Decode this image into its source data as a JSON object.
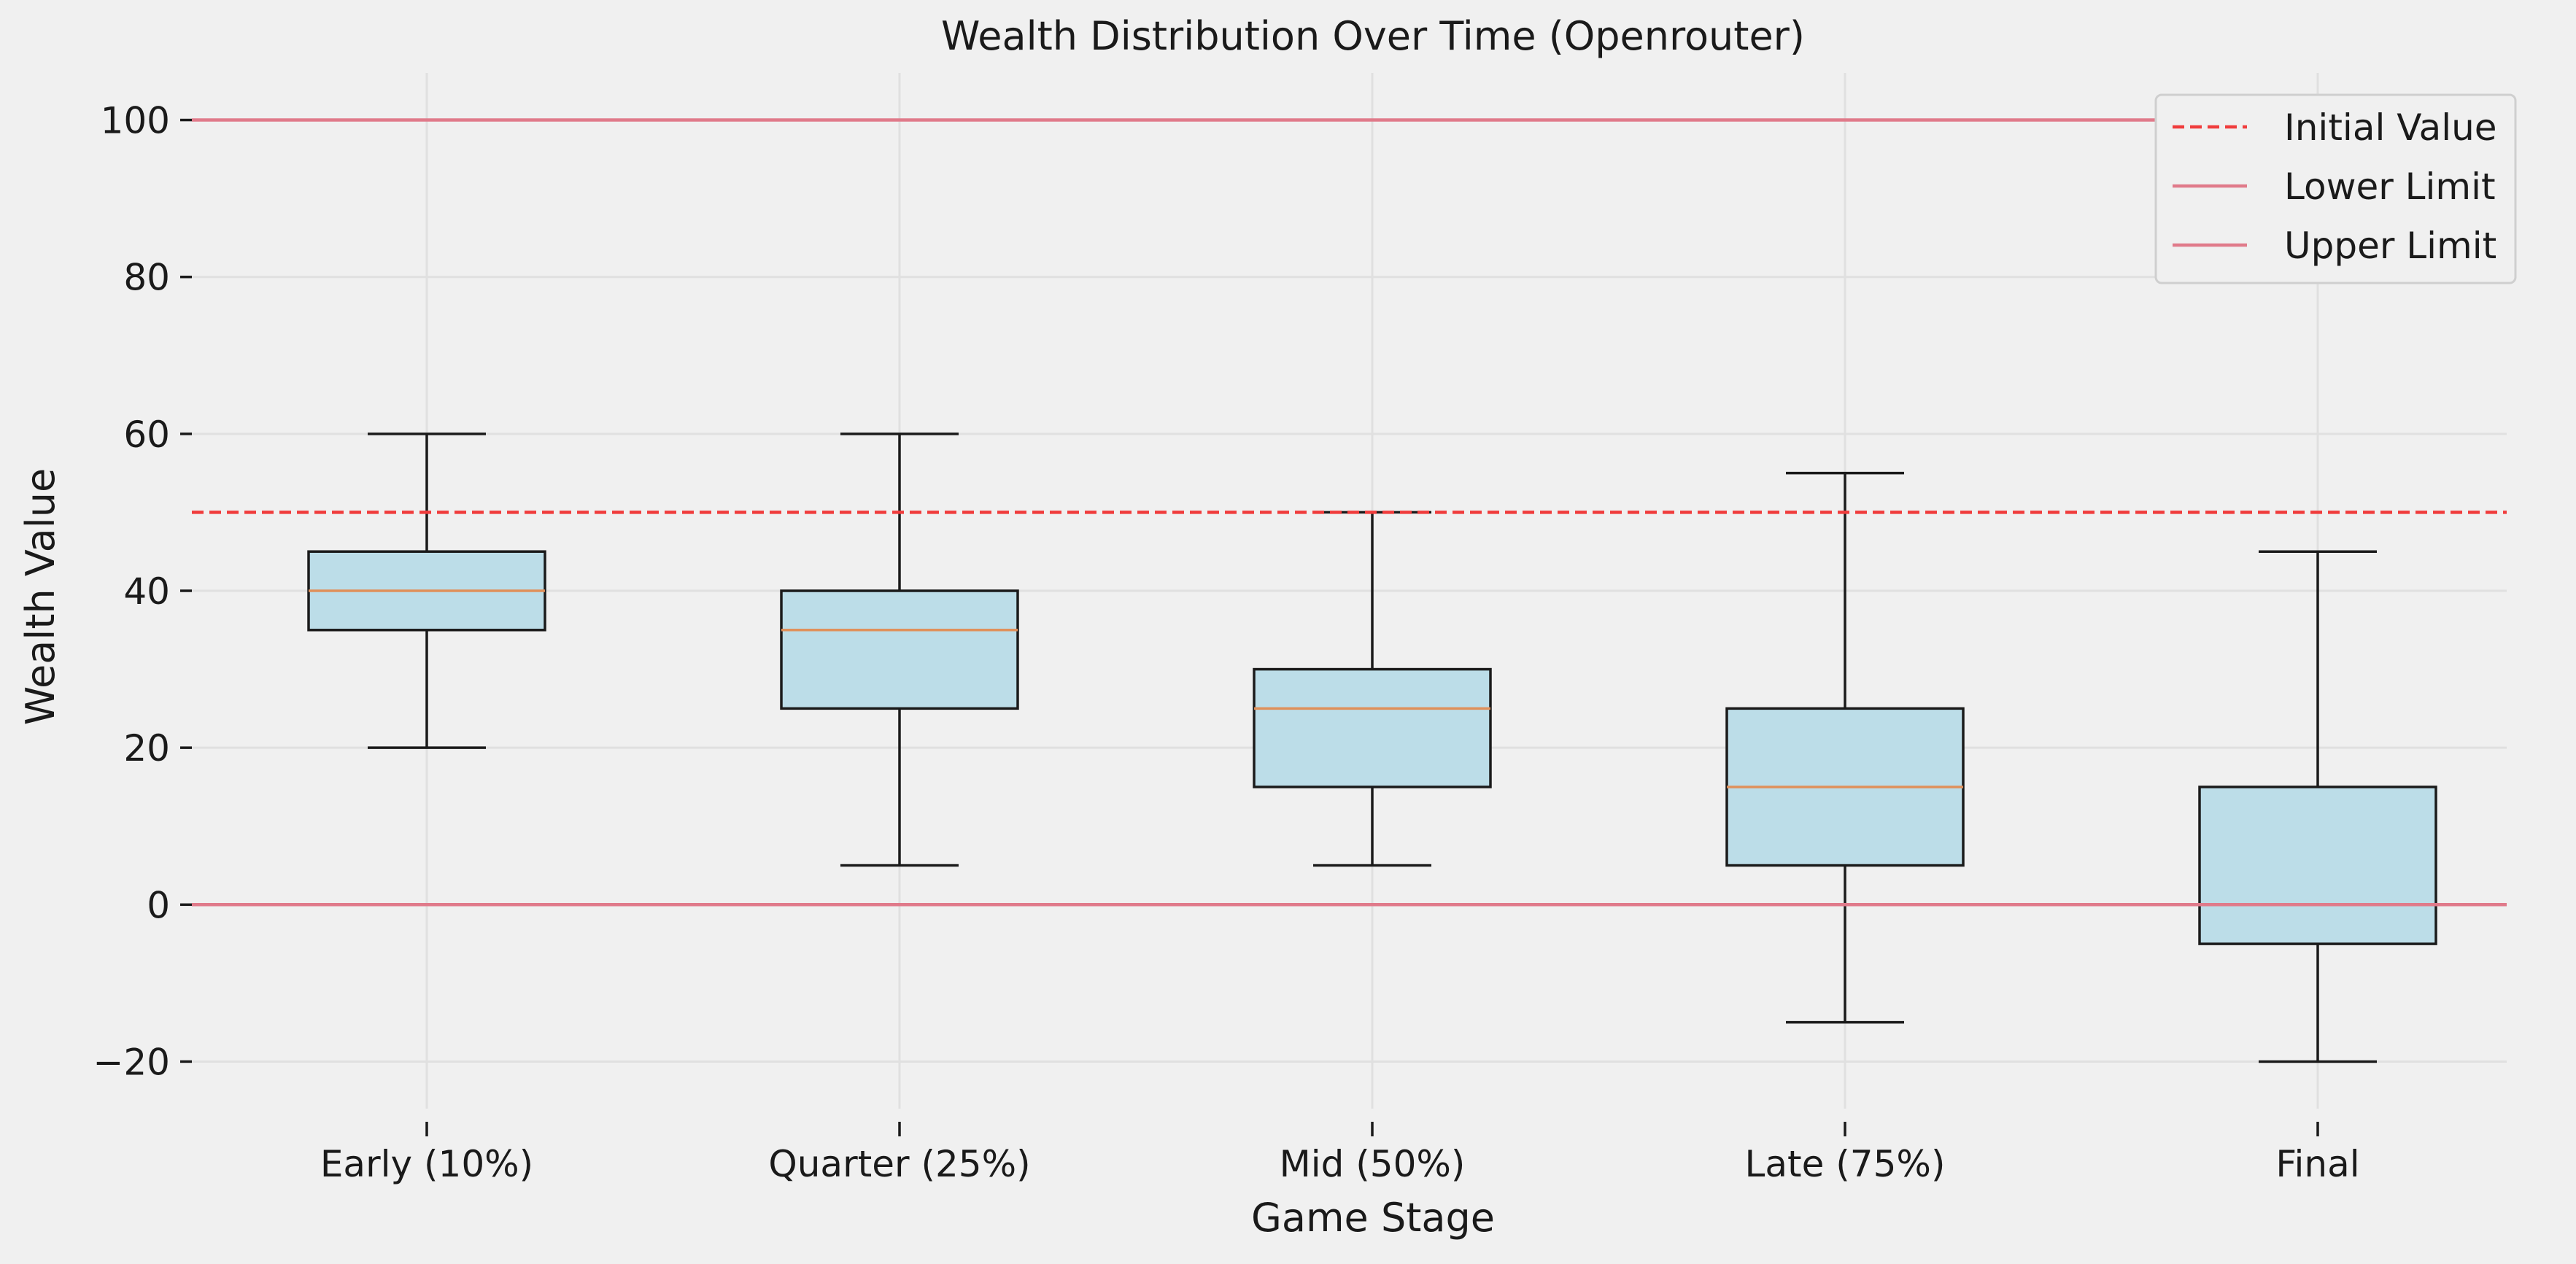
{
  "chart_data": {
    "type": "box",
    "title": "Wealth Distribution Over Time (Openrouter)",
    "xlabel": "Game Stage",
    "ylabel": "Wealth Value",
    "ylim": [
      -26,
      106
    ],
    "yticks": [
      -20,
      0,
      20,
      40,
      60,
      80,
      100
    ],
    "ytick_labels": [
      "−20",
      "0",
      "20",
      "40",
      "60",
      "80",
      "100"
    ],
    "grid": true,
    "legend_position": "top-right",
    "categories": [
      "Early (10%)",
      "Quarter (25%)",
      "Mid (50%)",
      "Late (75%)",
      "Final"
    ],
    "boxes": [
      {
        "whisker_low": 20,
        "q1": 35,
        "median": 40,
        "q3": 45,
        "whisker_high": 60
      },
      {
        "whisker_low": 5,
        "q1": 25,
        "median": 35,
        "q3": 40,
        "whisker_high": 60
      },
      {
        "whisker_low": 5,
        "q1": 15,
        "median": 25,
        "q3": 30,
        "whisker_high": 50
      },
      {
        "whisker_low": -15,
        "q1": 5,
        "median": 15,
        "q3": 25,
        "whisker_high": 55
      },
      {
        "whisker_low": -20,
        "q1": -5,
        "median": 0,
        "q3": 15,
        "whisker_high": 45
      }
    ],
    "reference_lines": [
      {
        "name": "Initial Value",
        "value": 50,
        "style": "dashed",
        "color": "#f03c3c"
      },
      {
        "name": "Lower Limit",
        "value": 0,
        "style": "solid",
        "color": "#e07a8a"
      },
      {
        "name": "Upper Limit",
        "value": 100,
        "style": "solid",
        "color": "#e07a8a"
      }
    ],
    "colors": {
      "box_fill": "#bcdde8",
      "box_edge": "#1a1a1a",
      "median": "#e0905a",
      "background": "#f0f0f0",
      "grid": "#e0e0e0"
    }
  }
}
